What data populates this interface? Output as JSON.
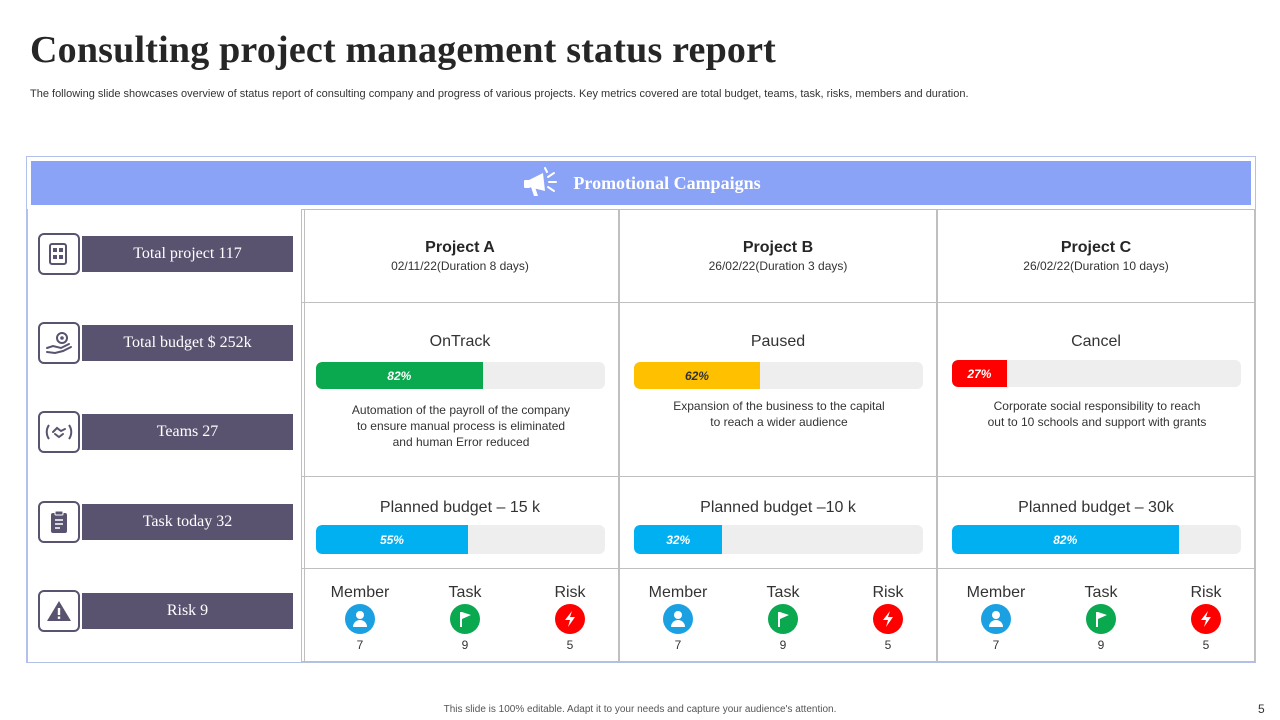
{
  "title": "Consulting project management status report",
  "subtitle": "The following slide showcases overview of status report of consulting company and progress of various projects. Key metrics covered are total budget, teams, task, risks, members and duration.",
  "banner": {
    "title": "Promotional Campaigns",
    "icon": "megaphone-icon"
  },
  "metrics": [
    {
      "label": "Total project 117",
      "icon": "document-icon"
    },
    {
      "label": "Total budget $ 252k",
      "icon": "hand-gear-icon"
    },
    {
      "label": "Teams 27",
      "icon": "handshake-icon"
    },
    {
      "label": "Task today 32",
      "icon": "clipboard-icon"
    },
    {
      "label": "Risk 9",
      "icon": "warning-icon"
    }
  ],
  "projects": [
    {
      "name": "Project A",
      "date": "02/11/22(Duration  8 days)",
      "status": "OnTrack",
      "status_color": "#0aa84f",
      "progress": 0.82,
      "progress_label": "82%",
      "description_lines": [
        "Automation of the payroll of the company",
        "to ensure manual process is eliminated",
        "and human Error reduced"
      ],
      "budget_title": "Planned budget – 15 k",
      "budget_progress": 0.55,
      "budget_label": "55%",
      "member_label": "Member",
      "member_value": "7",
      "task_label": "Task",
      "task_value": "9",
      "risk_label": "Risk",
      "risk_value": "5"
    },
    {
      "name": "Project B",
      "date": "26/02/22(Duration  3 days)",
      "status": "Paused",
      "status_color": "#ffc000",
      "progress": 0.62,
      "progress_label": "62%",
      "description_lines": [
        "Expansion of the business to the capital",
        "to reach a wider  audience"
      ],
      "budget_title": "Planned budget –10 k",
      "budget_progress": 0.32,
      "budget_label": "32%",
      "member_label": "Member",
      "member_value": "7",
      "task_label": "Task",
      "task_value": "9",
      "risk_label": "Risk",
      "risk_value": "5"
    },
    {
      "name": "Project C",
      "date": "26/02/22(Duration  10 days)",
      "status": "Cancel",
      "status_color": "#ff0000",
      "progress": 0.27,
      "progress_label": "27%",
      "description_lines": [
        "Corporate  social responsibility to reach",
        "out to 10 schools and support with grants"
      ],
      "budget_title": "Planned budget – 30k",
      "budget_progress": 0.82,
      "budget_label": "82%",
      "member_label": "Member",
      "member_value": "7",
      "task_label": "Task",
      "task_value": "9",
      "risk_label": "Risk",
      "risk_value": "5"
    }
  ],
  "colors": {
    "budget_bar": "#00b0f0",
    "member_icon": "#1ba1e2",
    "task_icon": "#0aa84f",
    "risk_icon": "#ff0000",
    "metric_label_bg": "#5a5370",
    "banner_bg": "#8aa3f6"
  },
  "footer": "This slide is 100% editable.  Adapt it to your needs and capture your audience's attention.",
  "page_number": "5"
}
